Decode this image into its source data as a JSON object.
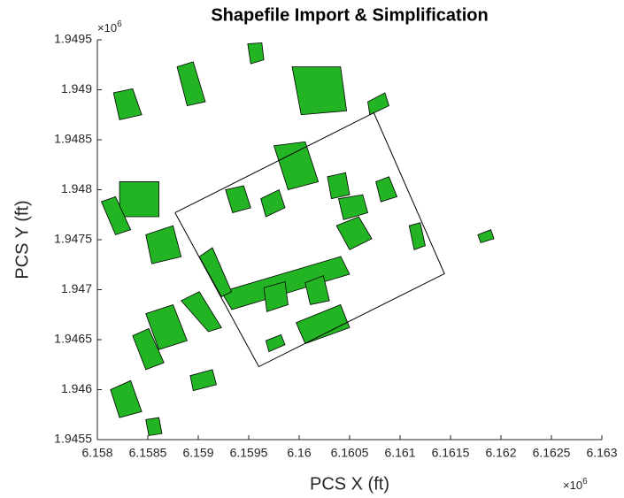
{
  "chart_data": {
    "type": "patch",
    "title": "Shapefile Import & Simplification",
    "xlabel": "PCS X (ft)",
    "ylabel": "PCS Y (ft)",
    "x_multiplier": {
      "base": "×10",
      "exponent": "6"
    },
    "y_multiplier": {
      "base": "×10",
      "exponent": "6"
    },
    "xlim": [
      6.158,
      6.163
    ],
    "ylim": [
      1.9455,
      1.9495
    ],
    "xticks": [
      6.158,
      6.1585,
      6.159,
      6.1595,
      6.16,
      6.1605,
      6.161,
      6.1615,
      6.162,
      6.1625,
      6.163
    ],
    "yticks": [
      1.9455,
      1.946,
      1.9465,
      1.947,
      1.9475,
      1.948,
      1.9485,
      1.949,
      1.9495
    ],
    "face_color": "#22b422",
    "edge_color": "#000000",
    "outline_color": "#000000",
    "polygons": [
      {
        "x": [
          6.159228,
          6.160412,
          6.1605,
          6.159333
        ],
        "y": [
          1.946978,
          1.947332,
          1.947155,
          1.946801
        ]
      },
      {
        "x": [
          6.15993,
          6.16041,
          6.16047,
          6.16002
        ],
        "y": [
          1.94923,
          1.94923,
          1.94879,
          1.94875
        ]
      },
      {
        "x": [
          6.15879,
          6.15895,
          6.15907,
          6.15889
        ],
        "y": [
          1.94923,
          1.94928,
          1.94888,
          1.94884
        ]
      },
      {
        "x": [
          6.15816,
          6.15835,
          6.15844,
          6.15822
        ],
        "y": [
          1.94897,
          1.94901,
          1.94875,
          1.9487
        ]
      },
      {
        "x": [
          6.15822,
          6.15861,
          6.15861,
          6.15822
        ],
        "y": [
          1.94808,
          1.94808,
          1.94773,
          1.94773
        ]
      },
      {
        "x": [
          6.15804,
          6.15818,
          6.15833,
          6.15818
        ],
        "y": [
          1.94788,
          1.94793,
          1.9476,
          1.94755
        ]
      },
      {
        "x": [
          6.15848,
          6.15875,
          6.15883,
          6.15854
        ],
        "y": [
          1.94755,
          1.94764,
          1.94733,
          1.94726
        ]
      },
      {
        "x": [
          6.15848,
          6.15875,
          6.15889,
          6.15861
        ],
        "y": [
          1.94676,
          1.94685,
          1.94649,
          1.9464
        ]
      },
      {
        "x": [
          6.15883,
          6.15901,
          6.15923,
          6.1591
        ],
        "y": [
          1.94689,
          1.94698,
          1.94662,
          1.94658
        ]
      },
      {
        "x": [
          6.15901,
          6.15914,
          6.15933,
          6.15923
        ],
        "y": [
          1.94733,
          1.94742,
          1.94698,
          1.94693
        ]
      },
      {
        "x": [
          6.15997,
          6.16041,
          6.1605,
          6.16006
        ],
        "y": [
          1.94667,
          1.94685,
          1.94662,
          1.94646
        ]
      },
      {
        "x": [
          6.16006,
          6.16024,
          6.1603,
          6.16011
        ],
        "y": [
          1.94707,
          1.94714,
          1.94689,
          1.94685
        ]
      },
      {
        "x": [
          6.15975,
          6.16006,
          6.16019,
          6.15989
        ],
        "y": [
          1.94844,
          1.94848,
          1.94808,
          1.948
        ]
      },
      {
        "x": [
          6.16028,
          6.16046,
          6.1605,
          6.16032
        ],
        "y": [
          1.94813,
          1.94817,
          1.94795,
          1.94791
        ]
      },
      {
        "x": [
          6.16039,
          6.16063,
          6.16068,
          6.16044
        ],
        "y": [
          1.94791,
          1.94795,
          1.94777,
          1.9477
        ]
      },
      {
        "x": [
          6.16037,
          6.16059,
          6.16072,
          6.1605
        ],
        "y": [
          1.94764,
          1.94773,
          1.94751,
          1.9474
        ]
      },
      {
        "x": [
          6.15927,
          6.15945,
          6.15952,
          6.15934
        ],
        "y": [
          1.948,
          1.94804,
          1.94782,
          1.94777
        ]
      },
      {
        "x": [
          6.15962,
          6.1598,
          6.15986,
          6.15967
        ],
        "y": [
          1.94791,
          1.948,
          1.94782,
          1.94773
        ]
      },
      {
        "x": [
          6.16068,
          6.16085,
          6.16089,
          6.1607
        ],
        "y": [
          1.94888,
          1.94897,
          1.94884,
          1.94875
        ]
      },
      {
        "x": [
          6.16076,
          6.16089,
          6.16097,
          6.16081
        ],
        "y": [
          1.94808,
          1.94813,
          1.94793,
          1.94788
        ]
      },
      {
        "x": [
          6.16109,
          6.1612,
          6.16125,
          6.16114
        ],
        "y": [
          1.94764,
          1.94767,
          1.94744,
          1.9474
        ]
      },
      {
        "x": [
          6.15949,
          6.15963,
          6.15965,
          6.15952
        ],
        "y": [
          1.94946,
          1.94947,
          1.9493,
          1.94926
        ]
      },
      {
        "x": [
          6.15965,
          6.15986,
          6.15989,
          6.15968
        ],
        "y": [
          1.94702,
          1.94708,
          1.94685,
          1.94678
        ]
      },
      {
        "x": [
          6.15835,
          6.15851,
          6.15866,
          6.15848
        ],
        "y": [
          1.94654,
          1.94661,
          1.94627,
          1.9462
        ]
      },
      {
        "x": [
          6.15813,
          6.15833,
          6.15844,
          6.15822
        ],
        "y": [
          1.946,
          1.94609,
          1.94578,
          1.94572
        ]
      },
      {
        "x": [
          6.15848,
          6.15861,
          6.15864,
          6.15851
        ],
        "y": [
          1.9457,
          1.94572,
          1.94556,
          1.94554
        ]
      },
      {
        "x": [
          6.15892,
          6.15914,
          6.15918,
          6.15895
        ],
        "y": [
          1.94614,
          1.9462,
          1.94605,
          1.94599
        ]
      },
      {
        "x": [
          6.16177,
          6.1619,
          6.16193,
          6.1618
        ],
        "y": [
          1.94755,
          1.9476,
          1.94751,
          1.94747
        ]
      },
      {
        "x": [
          6.15967,
          6.15982,
          6.15986,
          6.1597
        ],
        "y": [
          1.94649,
          1.94655,
          1.94645,
          1.94638
        ]
      }
    ],
    "outline": {
      "x": [
        6.15877,
        6.16074,
        6.16144,
        6.1596,
        6.15877
      ],
      "y": [
        1.94777,
        1.94877,
        1.94716,
        1.94623,
        1.94777
      ]
    }
  }
}
